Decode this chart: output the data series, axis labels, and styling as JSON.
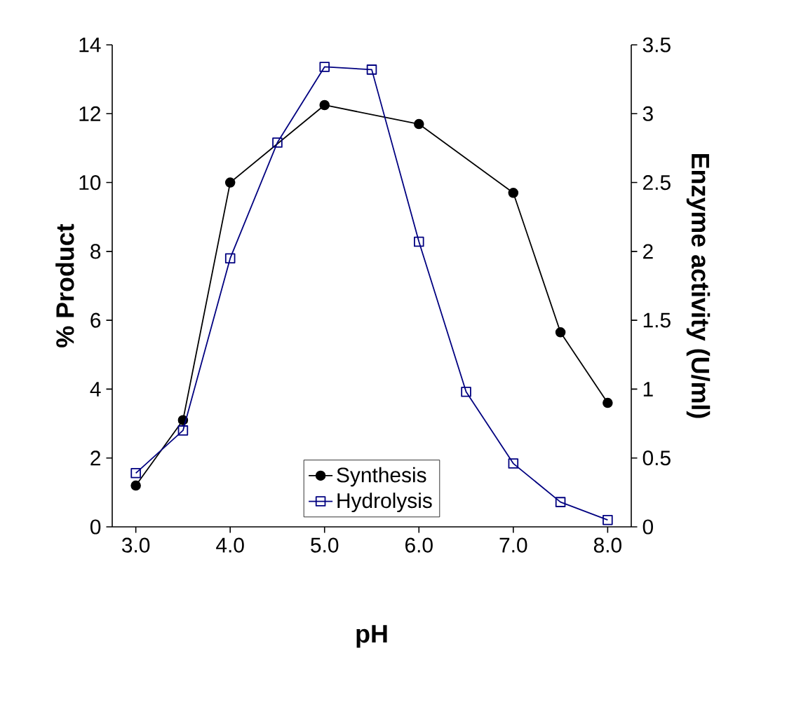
{
  "chart_data": {
    "type": "line",
    "xlabel": "pH",
    "ylabel": "% Product",
    "y2label": "Enzyme activity (U/ml)",
    "x": [
      3.0,
      3.5,
      4.0,
      4.5,
      5.0,
      5.5,
      6.0,
      6.5,
      7.0,
      7.5,
      8.0
    ],
    "series": [
      {
        "name": "Synthesis",
        "color": "#000000",
        "marker": "circle",
        "x": [
          3.0,
          3.5,
          4.0,
          5.0,
          6.0,
          7.0,
          7.5,
          8.0
        ],
        "values": [
          1.2,
          3.1,
          10.0,
          12.25,
          11.7,
          9.7,
          5.65,
          3.6
        ]
      },
      {
        "name": "Hydrolysis",
        "color": "#000080",
        "marker": "square",
        "axis": "y2",
        "values": [
          0.39,
          0.7,
          1.95,
          2.79,
          3.34,
          3.32,
          2.07,
          0.98,
          0.46,
          0.18,
          0.05
        ]
      }
    ],
    "xlim": [
      2.75,
      8.25
    ],
    "xticks": [
      {
        "value": 3,
        "label": "3.0"
      },
      {
        "value": 4,
        "label": "4.0"
      },
      {
        "value": 5,
        "label": "5.0"
      },
      {
        "value": 6,
        "label": "6.0"
      },
      {
        "value": 7,
        "label": "7.0"
      },
      {
        "value": 8,
        "label": "8.0"
      }
    ],
    "ylim": [
      0,
      14
    ],
    "yticks": [
      0,
      2,
      4,
      6,
      8,
      10,
      12,
      14
    ],
    "y2lim": [
      0,
      3.5
    ],
    "y2ticks": [
      0,
      0.5,
      1,
      1.5,
      2,
      2.5,
      3,
      3.5
    ],
    "grid": false,
    "legend": "bottom",
    "line_style": "solid"
  }
}
